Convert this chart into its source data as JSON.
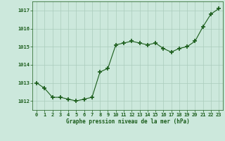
{
  "x": [
    0,
    1,
    2,
    3,
    4,
    5,
    6,
    7,
    8,
    9,
    10,
    11,
    12,
    13,
    14,
    15,
    16,
    17,
    18,
    19,
    20,
    21,
    22,
    23
  ],
  "y": [
    1013.0,
    1012.7,
    1012.2,
    1012.2,
    1012.1,
    1012.0,
    1012.1,
    1012.2,
    1013.6,
    1013.8,
    1015.1,
    1015.2,
    1015.3,
    1015.2,
    1015.1,
    1015.2,
    1014.9,
    1014.7,
    1014.9,
    1015.0,
    1015.3,
    1016.1,
    1016.8,
    1017.1
  ],
  "line_color": "#1a5c1a",
  "marker_color": "#1a5c1a",
  "bg_color": "#cce8dc",
  "grid_color": "#aaccbb",
  "xlabel": "Graphe pression niveau de la mer (hPa)",
  "xlabel_color": "#1a5c1a",
  "tick_color": "#1a5c1a",
  "ylim": [
    1011.5,
    1017.5
  ],
  "xlim": [
    -0.5,
    23.5
  ],
  "yticks": [
    1012,
    1013,
    1014,
    1015,
    1016,
    1017
  ],
  "xticks": [
    0,
    1,
    2,
    3,
    4,
    5,
    6,
    7,
    8,
    9,
    10,
    11,
    12,
    13,
    14,
    15,
    16,
    17,
    18,
    19,
    20,
    21,
    22,
    23
  ],
  "xtick_labels": [
    "0",
    "1",
    "2",
    "3",
    "4",
    "5",
    "6",
    "7",
    "8",
    "9",
    "10",
    "11",
    "12",
    "13",
    "14",
    "15",
    "16",
    "17",
    "18",
    "19",
    "20",
    "21",
    "22",
    "23"
  ]
}
